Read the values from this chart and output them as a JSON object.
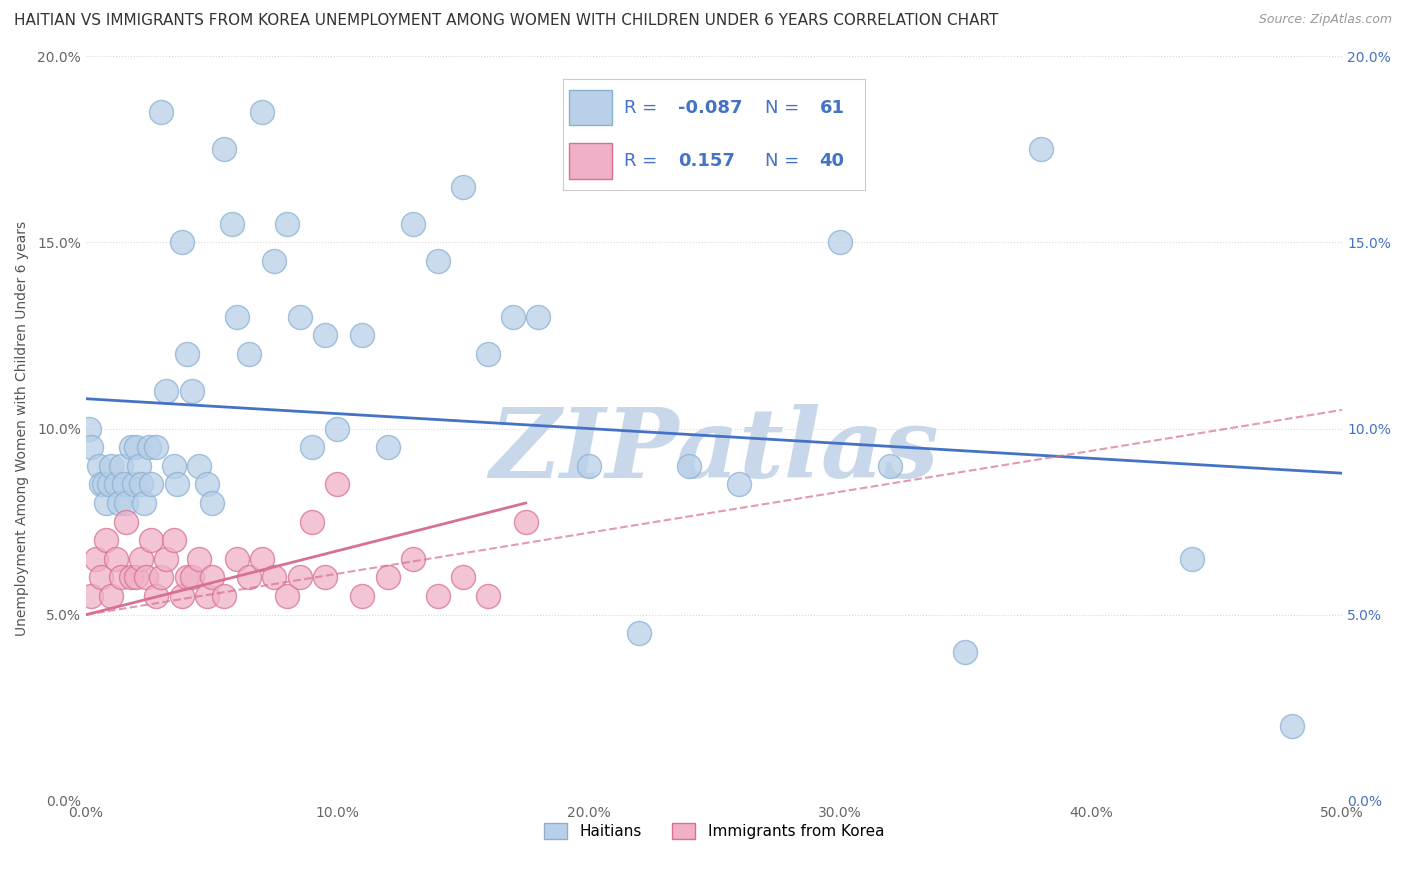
{
  "title": "HAITIAN VS IMMIGRANTS FROM KOREA UNEMPLOYMENT AMONG WOMEN WITH CHILDREN UNDER 6 YEARS CORRELATION CHART",
  "source": "Source: ZipAtlas.com",
  "ylabel": "Unemployment Among Women with Children Under 6 years",
  "xmin": 0.0,
  "xmax": 0.5,
  "ymin": 0.0,
  "ymax": 0.2,
  "xticks": [
    0.0,
    0.1,
    0.2,
    0.3,
    0.4,
    0.5
  ],
  "yticks": [
    0.0,
    0.05,
    0.1,
    0.15,
    0.2
  ],
  "xtick_labels": [
    "0.0%",
    "10.0%",
    "20.0%",
    "30.0%",
    "40.0%",
    "50.0%"
  ],
  "ytick_labels": [
    "0.0%",
    "5.0%",
    "10.0%",
    "15.0%",
    "20.0%"
  ],
  "series": [
    {
      "name": "Haitians",
      "R": -0.087,
      "N": 61,
      "color": "#b8d0e8",
      "edge_color": "#8ab0d0",
      "trend_color": "#4472c4",
      "trend_style": "solid",
      "x": [
        0.001,
        0.002,
        0.005,
        0.006,
        0.007,
        0.008,
        0.009,
        0.01,
        0.012,
        0.013,
        0.014,
        0.015,
        0.016,
        0.018,
        0.019,
        0.02,
        0.021,
        0.022,
        0.023,
        0.025,
        0.026,
        0.028,
        0.03,
        0.032,
        0.035,
        0.036,
        0.038,
        0.04,
        0.042,
        0.045,
        0.048,
        0.05,
        0.055,
        0.058,
        0.06,
        0.065,
        0.07,
        0.075,
        0.08,
        0.085,
        0.09,
        0.095,
        0.1,
        0.11,
        0.12,
        0.13,
        0.14,
        0.15,
        0.16,
        0.17,
        0.18,
        0.2,
        0.22,
        0.24,
        0.26,
        0.3,
        0.32,
        0.35,
        0.38,
        0.44,
        0.48
      ],
      "y": [
        0.1,
        0.095,
        0.09,
        0.085,
        0.085,
        0.08,
        0.085,
        0.09,
        0.085,
        0.08,
        0.09,
        0.085,
        0.08,
        0.095,
        0.085,
        0.095,
        0.09,
        0.085,
        0.08,
        0.095,
        0.085,
        0.095,
        0.185,
        0.11,
        0.09,
        0.085,
        0.15,
        0.12,
        0.11,
        0.09,
        0.085,
        0.08,
        0.175,
        0.155,
        0.13,
        0.12,
        0.185,
        0.145,
        0.155,
        0.13,
        0.095,
        0.125,
        0.1,
        0.125,
        0.095,
        0.155,
        0.145,
        0.165,
        0.12,
        0.13,
        0.13,
        0.09,
        0.045,
        0.09,
        0.085,
        0.15,
        0.09,
        0.04,
        0.175,
        0.065,
        0.02
      ],
      "trend_x": [
        0.0,
        0.5
      ],
      "trend_y": [
        0.108,
        0.088
      ]
    },
    {
      "name": "Immigrants from Korea",
      "R": 0.157,
      "N": 40,
      "color": "#f0b0c8",
      "edge_color": "#d87090",
      "trend_color": "#d87090",
      "trend_style": "solid",
      "x": [
        0.002,
        0.004,
        0.006,
        0.008,
        0.01,
        0.012,
        0.014,
        0.016,
        0.018,
        0.02,
        0.022,
        0.024,
        0.026,
        0.028,
        0.03,
        0.032,
        0.035,
        0.038,
        0.04,
        0.042,
        0.045,
        0.048,
        0.05,
        0.055,
        0.06,
        0.065,
        0.07,
        0.075,
        0.08,
        0.085,
        0.09,
        0.095,
        0.1,
        0.11,
        0.12,
        0.13,
        0.14,
        0.15,
        0.16,
        0.175
      ],
      "y": [
        0.055,
        0.065,
        0.06,
        0.07,
        0.055,
        0.065,
        0.06,
        0.075,
        0.06,
        0.06,
        0.065,
        0.06,
        0.07,
        0.055,
        0.06,
        0.065,
        0.07,
        0.055,
        0.06,
        0.06,
        0.065,
        0.055,
        0.06,
        0.055,
        0.065,
        0.06,
        0.065,
        0.06,
        0.055,
        0.06,
        0.075,
        0.06,
        0.085,
        0.055,
        0.06,
        0.065,
        0.055,
        0.06,
        0.055,
        0.075
      ],
      "dashed_trend_x": [
        0.0,
        0.5
      ],
      "dashed_trend_y": [
        0.05,
        0.105
      ],
      "trend_x": [
        0.0,
        0.175
      ],
      "trend_y": [
        0.05,
        0.08
      ]
    }
  ],
  "watermark_text": "ZIPatlas",
  "watermark_color": "#c8d8ea",
  "background_color": "#ffffff",
  "grid_color": "#d8d8d8",
  "grid_style": "dotted",
  "title_fontsize": 11,
  "axis_label_fontsize": 10,
  "tick_fontsize": 10,
  "legend_fontsize": 13
}
